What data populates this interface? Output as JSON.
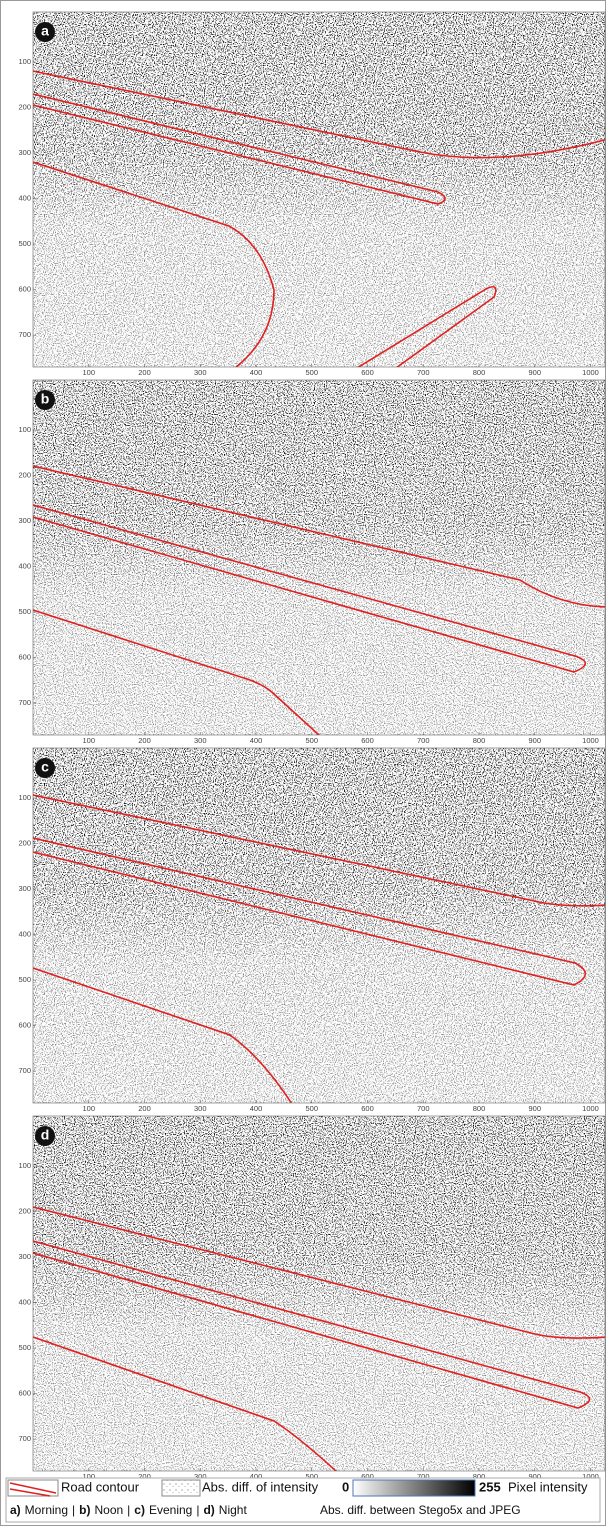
{
  "figure": {
    "panels": [
      {
        "label": "a"
      },
      {
        "label": "b"
      },
      {
        "label": "c"
      },
      {
        "label": "d"
      }
    ],
    "xlim": [
      0,
      1026
    ],
    "ylim": [
      -10,
      770
    ],
    "xticks": [
      100,
      200,
      300,
      400,
      500,
      600,
      700,
      800,
      900,
      1000
    ],
    "yticks": [
      100,
      200,
      300,
      400,
      500,
      600,
      700
    ],
    "contour_color": "#e02020",
    "legend": {
      "road": "Road contour",
      "diff": "Abs. diff. of intensity",
      "scale_min": "0",
      "scale_max": "255",
      "scale_label": "Pixel intensity",
      "periods": [
        {
          "letter": "a)",
          "name": "Morning"
        },
        {
          "letter": "b)",
          "name": "Noon"
        },
        {
          "letter": "c)",
          "name": "Evening"
        },
        {
          "letter": "d)",
          "name": "Night"
        }
      ],
      "separator": "|",
      "caption": "Abs. diff. between Stego5x and JPEG"
    }
  }
}
